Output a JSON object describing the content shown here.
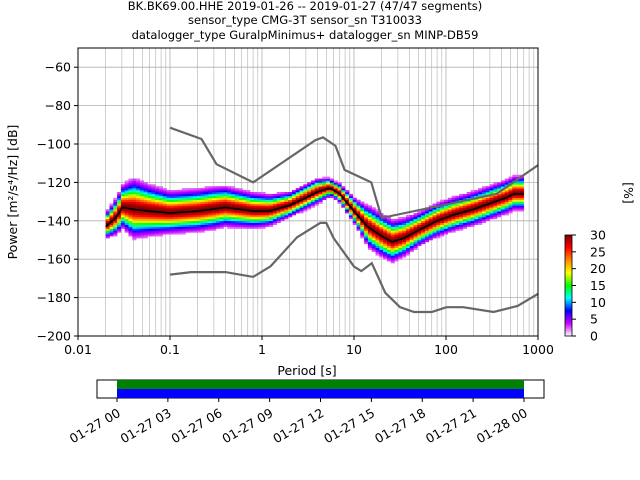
{
  "header": {
    "line1": "BK.BK69.00.HHE   2019-01-26 -- 2019-01-27  (47/47 segments)",
    "line2": "sensor_type CMG-3T sensor_sn T310033",
    "line3": "datalogger_type GuralpMinimus+ datalogger_sn MINP-DB59"
  },
  "colors": {
    "noise_model": "#666666",
    "mode_line": "#000000",
    "colormap": [
      "#ffffff",
      "#cc00ff",
      "#0000ff",
      "#00ffff",
      "#00ff00",
      "#ffff00",
      "#ff8800",
      "#ff0000",
      "#800000"
    ]
  },
  "chart_data": [
    {
      "type": "heatmap",
      "title": "",
      "xlabel": "Period [s]",
      "ylabel": "Power [m²/s⁴/Hz] [dB]",
      "xscale": "log",
      "xlim": [
        0.01,
        1000
      ],
      "ylim": [
        -200,
        -50
      ],
      "grid": true,
      "x_ticks": [
        {
          "v": 0.01,
          "label": "0.01"
        },
        {
          "v": 0.1,
          "label": "0.1"
        },
        {
          "v": 1,
          "label": "1"
        },
        {
          "v": 10,
          "label": "10"
        },
        {
          "v": 100,
          "label": "100"
        },
        {
          "v": 1000,
          "label": "1000"
        }
      ],
      "y_ticks": [
        -200,
        -180,
        -160,
        -140,
        -120,
        -100,
        -80,
        -60
      ],
      "colorbar": {
        "label": "[%]",
        "range": [
          0,
          30
        ],
        "ticks": [
          0,
          5,
          10,
          15,
          20,
          25,
          30
        ]
      },
      "nhnm": [
        [
          0.1,
          -91.5
        ],
        [
          0.22,
          -97.4
        ],
        [
          0.32,
          -110.5
        ],
        [
          0.8,
          -120
        ],
        [
          3.8,
          -98
        ],
        [
          4.6,
          -96.5
        ],
        [
          6.3,
          -101
        ],
        [
          7.9,
          -113.5
        ],
        [
          15.4,
          -120
        ],
        [
          20,
          -138.5
        ],
        [
          354.8,
          -126
        ],
        [
          1000,
          -111
        ]
      ],
      "nlnm": [
        [
          0.1,
          -168
        ],
        [
          0.17,
          -166.7
        ],
        [
          0.4,
          -166.7
        ],
        [
          0.8,
          -169.2
        ],
        [
          1.24,
          -163.7
        ],
        [
          2.4,
          -148.6
        ],
        [
          4.3,
          -141.1
        ],
        [
          5,
          -141.1
        ],
        [
          6,
          -149
        ],
        [
          10,
          -163.8
        ],
        [
          12,
          -166.2
        ],
        [
          15.6,
          -162.1
        ],
        [
          21.9,
          -177.5
        ],
        [
          31.6,
          -185
        ],
        [
          45,
          -187.5
        ],
        [
          70,
          -187.5
        ],
        [
          101,
          -185
        ],
        [
          154,
          -185
        ],
        [
          328,
          -187.5
        ],
        [
          600,
          -184.4
        ],
        [
          1000,
          -178
        ]
      ],
      "mode": [
        [
          0.02,
          -143
        ],
        [
          0.025,
          -139
        ],
        [
          0.028,
          -136
        ],
        [
          0.03,
          -133
        ],
        [
          0.04,
          -134
        ],
        [
          0.06,
          -135
        ],
        [
          0.1,
          -136
        ],
        [
          0.2,
          -135
        ],
        [
          0.4,
          -133
        ],
        [
          0.8,
          -135
        ],
        [
          1.2,
          -135
        ],
        [
          2,
          -132
        ],
        [
          3,
          -128
        ],
        [
          4,
          -125
        ],
        [
          5.5,
          -123
        ],
        [
          7,
          -126
        ],
        [
          10,
          -135
        ],
        [
          14,
          -143
        ],
        [
          20,
          -148
        ],
        [
          26,
          -151
        ],
        [
          35,
          -149
        ],
        [
          50,
          -145
        ],
        [
          80,
          -140
        ],
        [
          120,
          -137
        ],
        [
          200,
          -134
        ],
        [
          300,
          -131
        ],
        [
          450,
          -128
        ],
        [
          550,
          -126
        ],
        [
          700,
          -126
        ]
      ],
      "spread": [
        [
          0.02,
          3
        ],
        [
          0.03,
          5
        ],
        [
          0.04,
          7
        ],
        [
          0.06,
          6
        ],
        [
          0.1,
          5
        ],
        [
          0.3,
          5
        ],
        [
          1,
          4
        ],
        [
          2,
          3
        ],
        [
          4,
          3
        ],
        [
          6,
          2
        ],
        [
          10,
          3
        ],
        [
          15,
          5
        ],
        [
          25,
          5
        ],
        [
          50,
          4
        ],
        [
          100,
          4
        ],
        [
          200,
          4
        ],
        [
          400,
          4
        ],
        [
          700,
          4
        ]
      ]
    },
    {
      "type": "timeline",
      "title": "",
      "x_ticks": [
        "01-27 00",
        "01-27 03",
        "01-27 06",
        "01-27 09",
        "01-27 12",
        "01-27 15",
        "01-27 18",
        "01-27 21",
        "01-28 00"
      ],
      "data_start": "01-27 00",
      "data_end": "01-28 00",
      "rows": [
        {
          "color": "#008000"
        },
        {
          "color": "#0000ff"
        }
      ]
    }
  ]
}
